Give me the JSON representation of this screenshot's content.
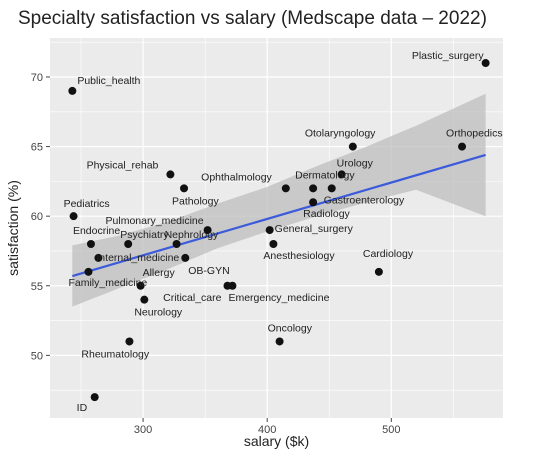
{
  "chart_data": {
    "type": "scatter",
    "title": "Specialty satisfaction vs salary (Medscape data – 2022)",
    "xlabel": "salary ($k)",
    "ylabel": "satisfaction (%)",
    "xlim": [
      225,
      590
    ],
    "ylim": [
      45.5,
      72.8
    ],
    "xticks": [
      300,
      400,
      500
    ],
    "yticks": [
      50,
      55,
      60,
      65,
      70
    ],
    "grid": true,
    "background": "#ebebeb",
    "grid_color": "#ffffff",
    "point_color": "#111111",
    "fit_line_color": "#3b5bdb",
    "confidence_band_color": "#bdbdbd",
    "fit_line": {
      "x": [
        243,
        576
      ],
      "y": [
        55.7,
        64.4
      ]
    },
    "confidence_band": {
      "x": [
        243,
        280,
        320,
        360,
        400,
        440,
        480,
        520,
        576
      ],
      "upper": [
        57.9,
        58.6,
        59.6,
        60.9,
        62.1,
        63.6,
        65.0,
        66.5,
        68.8
      ],
      "lower": [
        53.5,
        54.8,
        56.2,
        57.7,
        58.9,
        60.0,
        61.0,
        61.9,
        60.0
      ]
    },
    "points": [
      {
        "label": "Plastic_surgery",
        "x": 576,
        "y": 71
      },
      {
        "label": "Public_health",
        "x": 243,
        "y": 69
      },
      {
        "label": "Orthopedics",
        "x": 557,
        "y": 65
      },
      {
        "label": "Otolaryngology",
        "x": 469,
        "y": 65
      },
      {
        "label": "Physical_rehab",
        "x": 322,
        "y": 63
      },
      {
        "label": "Urology",
        "x": 460,
        "y": 63
      },
      {
        "label": "Pathology",
        "x": 333,
        "y": 62
      },
      {
        "label": "Ophthalmology",
        "x": 415,
        "y": 62
      },
      {
        "label": "Dermatology",
        "x": 437,
        "y": 62
      },
      {
        "label": "Gastroenterology",
        "x": 452,
        "y": 62
      },
      {
        "label": "Radiology",
        "x": 437,
        "y": 61
      },
      {
        "label": "Pediatrics",
        "x": 244,
        "y": 60
      },
      {
        "label": "Pulmonary_medicine",
        "x": 352,
        "y": 59
      },
      {
        "label": "General_surgery",
        "x": 402,
        "y": 59
      },
      {
        "label": "Endocrine",
        "x": 258,
        "y": 58
      },
      {
        "label": "Psychiatry",
        "x": 288,
        "y": 58
      },
      {
        "label": "Nephrology",
        "x": 327,
        "y": 58
      },
      {
        "label": "Anesthesiology",
        "x": 405,
        "y": 58
      },
      {
        "label": "Internal_medicine",
        "x": 264,
        "y": 57
      },
      {
        "label": "OB-GYN",
        "x": 334,
        "y": 57
      },
      {
        "label": "Family_medicine",
        "x": 256,
        "y": 56
      },
      {
        "label": "Cardiology",
        "x": 490,
        "y": 56
      },
      {
        "label": "Allergy",
        "x": 298,
        "y": 55
      },
      {
        "label": "Critical_care",
        "x": 368,
        "y": 55
      },
      {
        "label": "Emergency_medicine",
        "x": 372,
        "y": 55
      },
      {
        "label": "Neurology",
        "x": 301,
        "y": 54
      },
      {
        "label": "Oncology",
        "x": 410,
        "y": 51
      },
      {
        "label": "Rheumatology",
        "x": 289,
        "y": 51
      },
      {
        "label": "ID",
        "x": 261,
        "y": 47
      }
    ]
  }
}
